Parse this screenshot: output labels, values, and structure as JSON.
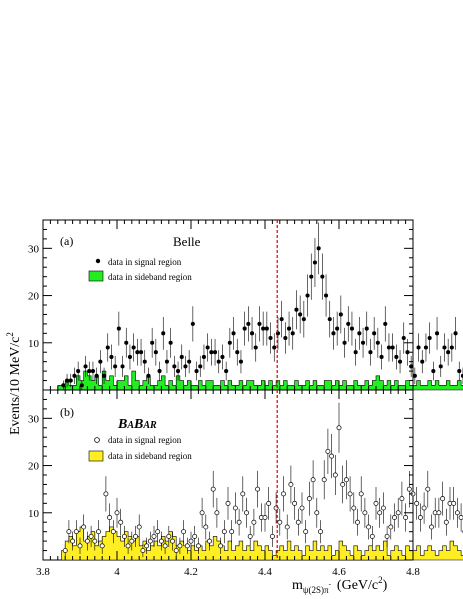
{
  "figure": {
    "ylabel": "Events/10 MeV/c",
    "ylabel_sup": "2",
    "xlabel_main": "m",
    "xlabel_sub": "ψ(2S)π",
    "xlabel_sub_sup": "-",
    "xlabel_unit": "(GeV/c",
    "xlabel_unit_sup": "2",
    "xlabel_unit_close": ")",
    "dashed_line_x": 4.433
  },
  "chart_data": [
    {
      "type": "bar",
      "panel": "(a)",
      "experiment": "Belle",
      "legend": [
        {
          "marker": "filled-circle",
          "label": "data in signal region"
        },
        {
          "marker": "green-box",
          "label": "data in sideband region"
        }
      ],
      "xlim": [
        3.8,
        4.8
      ],
      "ylim": [
        0,
        36
      ],
      "xticks": [
        "3.8",
        "4",
        "4.2",
        "4.4",
        "4.6",
        "4.8"
      ],
      "yticks": [
        "10",
        "20",
        "30"
      ],
      "colors": {
        "sideband": "#22ee22",
        "points": "#000000"
      },
      "signal_x_start": 3.855,
      "signal_step": 0.01,
      "signal": [
        1,
        2,
        2,
        3,
        4,
        1,
        5,
        4,
        4,
        3,
        6,
        3,
        9,
        7,
        5,
        13,
        5,
        10,
        7,
        9,
        8,
        8,
        6,
        3,
        10,
        8,
        4,
        12,
        6,
        10,
        5,
        4,
        7,
        5,
        6,
        14,
        4,
        5,
        7,
        9,
        8,
        8,
        6,
        7,
        4,
        10,
        12,
        8,
        6,
        13,
        14,
        12,
        9,
        14,
        13,
        13,
        11,
        9,
        12,
        15,
        11,
        13,
        12,
        17,
        16,
        15,
        20,
        24,
        27,
        30,
        24,
        20,
        15,
        12,
        13,
        16,
        10,
        14,
        13,
        8,
        12,
        10,
        13,
        8,
        12,
        10,
        7,
        14,
        9,
        9,
        7,
        6,
        11,
        8,
        5,
        3,
        9,
        6,
        9,
        11,
        4,
        12,
        5,
        9,
        8,
        9,
        12,
        4,
        3,
        5,
        5,
        2
      ],
      "sideband_x_start": 3.84,
      "sideband_step": 0.01,
      "sideband": [
        1,
        1,
        2,
        1,
        1,
        3,
        2,
        4,
        3,
        2,
        3,
        1,
        4,
        2,
        3,
        1,
        2,
        2,
        3,
        1,
        4,
        2,
        1,
        2,
        3,
        1,
        1,
        2,
        3,
        1,
        2,
        1,
        3,
        2,
        1,
        2,
        1,
        1,
        2,
        1,
        2,
        2,
        1,
        1,
        2,
        1,
        2,
        1,
        1,
        2,
        1,
        2,
        2,
        1,
        1,
        2,
        1,
        2,
        1,
        2,
        1,
        2,
        1,
        1,
        2,
        1,
        1,
        2,
        1,
        2,
        1,
        1,
        2,
        2,
        1,
        2,
        1,
        2,
        1,
        1,
        2,
        1,
        1,
        2,
        1,
        2,
        3,
        2,
        1,
        2,
        1,
        2,
        1,
        1,
        2,
        1,
        1,
        2,
        1,
        1,
        2,
        1,
        2,
        1,
        1,
        2,
        1,
        1,
        2,
        1,
        1,
        1,
        0,
        0
      ]
    },
    {
      "type": "bar",
      "panel": "(b)",
      "experiment": "BABAR",
      "legend": [
        {
          "marker": "open-circle",
          "label": "data in signal region"
        },
        {
          "marker": "yellow-box",
          "label": "data in sideband region"
        }
      ],
      "xlim": [
        3.8,
        4.8
      ],
      "ylim": [
        0,
        36
      ],
      "xticks": [
        "3.8",
        "4",
        "4.2",
        "4.4",
        "4.6",
        "4.8"
      ],
      "yticks": [
        "10",
        "20",
        "30"
      ],
      "colors": {
        "sideband": "#ffee22",
        "points": "#000000"
      },
      "signal_x_start": 3.86,
      "signal_step": 0.01,
      "signal": [
        2,
        6,
        4,
        6,
        3,
        7,
        4,
        5,
        4,
        6,
        3,
        14,
        9,
        6,
        10,
        8,
        5,
        3,
        4,
        5,
        7,
        2,
        3,
        4,
        5,
        6,
        4,
        3,
        5,
        4,
        2,
        3,
        6,
        3,
        4,
        5,
        3,
        10,
        7,
        4,
        15,
        10,
        3,
        6,
        12,
        6,
        11,
        8,
        14,
        10,
        5,
        8,
        15,
        9,
        9,
        12,
        5,
        11,
        8,
        14,
        7,
        16,
        12,
        8,
        11,
        6,
        13,
        17,
        10,
        6,
        17,
        23,
        22,
        18,
        28,
        16,
        17,
        14,
        11,
        8,
        14,
        10,
        7,
        5,
        12,
        10,
        11,
        5,
        7,
        9,
        10,
        13,
        9,
        15,
        14,
        12,
        9,
        11,
        15,
        7,
        10,
        10,
        13,
        8,
        12,
        12,
        10,
        9,
        6,
        14,
        11,
        5,
        7,
        10,
        9
      ],
      "sideband_x_start": 3.85,
      "sideband_step": 0.01,
      "sideband": [
        2,
        4,
        5,
        3,
        6,
        7,
        4,
        5,
        6,
        3,
        4,
        5,
        6,
        7,
        6,
        5,
        4,
        6,
        5,
        4,
        5,
        3,
        4,
        2,
        3,
        4,
        3,
        5,
        4,
        6,
        5,
        3,
        4,
        3,
        2,
        3,
        2,
        3,
        2,
        4,
        3,
        5,
        4,
        3,
        2,
        4,
        2,
        3,
        4,
        2,
        3,
        2,
        4,
        3,
        2,
        3,
        2,
        1,
        2,
        3,
        2,
        4,
        2,
        3,
        2,
        1,
        3,
        2,
        4,
        2,
        3,
        2,
        3,
        1,
        2,
        4,
        3,
        2,
        1,
        3,
        2,
        1,
        2,
        3,
        2,
        3,
        2,
        4,
        1,
        2,
        3,
        2,
        1,
        3,
        2,
        2,
        3,
        1,
        2,
        3,
        2,
        1,
        2,
        3,
        2,
        4,
        3,
        2,
        1,
        2,
        3,
        2,
        1,
        2,
        3,
        1,
        2,
        1,
        0
      ]
    }
  ]
}
